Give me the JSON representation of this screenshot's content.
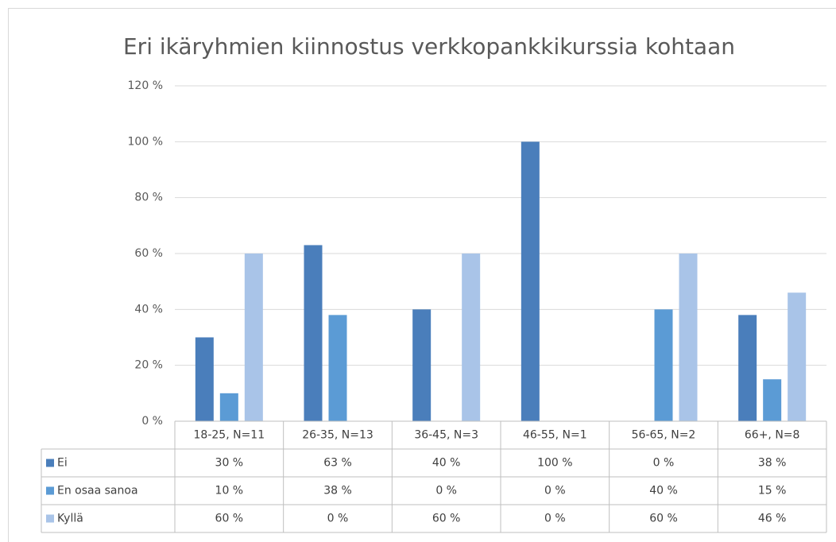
{
  "chart_data": {
    "type": "bar",
    "title": "Eri ikäryhmien kiinnostus verkkopankkikurssia kohtaan",
    "categories": [
      "18-25, N=11",
      "26-35, N=13",
      "36-45, N=3",
      "46-55, N=1",
      "56-65, N=2",
      "66+, N=8"
    ],
    "series": [
      {
        "name": "Ei",
        "color": "#4a7ebb",
        "values": [
          30,
          63,
          40,
          100,
          0,
          38
        ],
        "value_labels": [
          "30 %",
          "63 %",
          "40 %",
          "100 %",
          "0 %",
          "38 %"
        ]
      },
      {
        "name": "En osaa sanoa",
        "color": "#5b9bd5",
        "values": [
          10,
          38,
          0,
          0,
          40,
          15
        ],
        "value_labels": [
          "10 %",
          "38 %",
          "0 %",
          "0 %",
          "40 %",
          "15 %"
        ]
      },
      {
        "name": "Kyllä",
        "color": "#a9c4e8",
        "values": [
          60,
          0,
          60,
          0,
          60,
          46
        ],
        "value_labels": [
          "60 %",
          "0 %",
          "60 %",
          "0 %",
          "60 %",
          "46 %"
        ]
      }
    ],
    "ylim": [
      0,
      120
    ],
    "yticks": [
      {
        "value": 0,
        "label": "0 %"
      },
      {
        "value": 20,
        "label": "20 %"
      },
      {
        "value": 40,
        "label": "40 %"
      },
      {
        "value": 60,
        "label": "60 %"
      },
      {
        "value": 80,
        "label": "80 %"
      },
      {
        "value": 100,
        "label": "100 %"
      },
      {
        "value": 120,
        "label": "120 %"
      }
    ],
    "grid": true
  }
}
